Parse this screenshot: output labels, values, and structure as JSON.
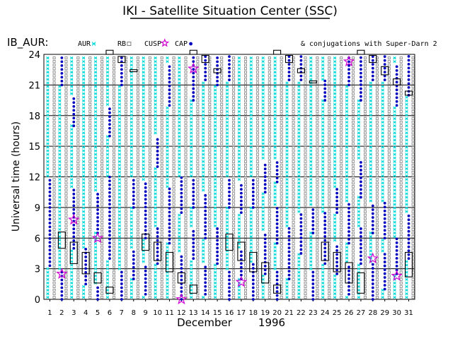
{
  "page_title": "IKI - Satellite Situation Center (SSC)",
  "panel_label": "IB_AUR:",
  "conjugations_note": "& conjugations with Super-Darn 2",
  "chart_data": {
    "type": "scatter",
    "title": "IKI - Satellite Situation Center (SSC)",
    "xlabel": "December",
    "xlabel_year": "1996",
    "ylabel": "Universal time (hours)",
    "xlim": [
      0.5,
      31.5
    ],
    "ylim": [
      0,
      24
    ],
    "x_ticks": [
      1,
      2,
      3,
      4,
      5,
      6,
      7,
      8,
      9,
      10,
      11,
      12,
      13,
      14,
      15,
      16,
      17,
      18,
      19,
      20,
      21,
      22,
      23,
      24,
      25,
      26,
      27,
      28,
      29,
      30,
      31
    ],
    "y_ticks": [
      0,
      3,
      6,
      9,
      12,
      15,
      18,
      21,
      24
    ],
    "grid": true,
    "legend_position": "top",
    "legend": [
      {
        "label": "AUR",
        "marker": "cross",
        "color": "#00d8d8"
      },
      {
        "label": "RB",
        "marker": "square",
        "color": "#808080"
      },
      {
        "label": "CUSP",
        "marker": "star",
        "color": "#d000d0"
      },
      {
        "label": "CAP",
        "marker": "dot",
        "color": "#0000c0"
      }
    ],
    "cap_intervals": [
      {
        "day": 1,
        "ranges": [
          [
            3.3,
            12.0
          ]
        ]
      },
      {
        "day": 2,
        "ranges": [
          [
            0,
            3.0
          ],
          [
            21.0,
            24.0
          ]
        ]
      },
      {
        "day": 3,
        "ranges": [
          [
            5.0,
            11.0
          ],
          [
            17.0,
            20.0
          ]
        ]
      },
      {
        "day": 4,
        "ranges": [
          [
            1.5,
            5.0
          ]
        ]
      },
      {
        "day": 5,
        "ranges": [
          [
            0,
            1.5
          ],
          [
            6.5,
            10.5
          ]
        ]
      },
      {
        "day": 6,
        "ranges": [
          [
            4.0,
            12.0
          ],
          [
            16.0,
            19.0
          ]
        ]
      },
      {
        "day": 7,
        "ranges": [
          [
            0,
            3.0
          ],
          [
            21.0,
            24.0
          ]
        ]
      },
      {
        "day": 8,
        "ranges": [
          [
            2.0,
            5.0
          ],
          [
            9.0,
            12.0
          ]
        ]
      },
      {
        "day": 9,
        "ranges": [
          [
            0.5,
            3.5
          ],
          [
            6.0,
            11.5
          ]
        ]
      },
      {
        "day": 10,
        "ranges": [
          [
            3.5,
            7.0
          ],
          [
            13.0,
            16.0
          ]
        ]
      },
      {
        "day": 11,
        "ranges": [
          [
            5.5,
            11.0
          ],
          [
            19.0,
            23.0
          ]
        ]
      },
      {
        "day": 12,
        "ranges": [
          [
            0,
            4.5
          ],
          [
            8.5,
            12.0
          ]
        ]
      },
      {
        "day": 13,
        "ranges": [
          [
            4.0,
            7.0
          ],
          [
            9.0,
            12.0
          ],
          [
            19.5,
            24.0
          ]
        ]
      },
      {
        "day": 14,
        "ranges": [
          [
            0.5,
            3.5
          ],
          [
            6.0,
            10.5
          ],
          [
            21.5,
            24.0
          ]
        ]
      },
      {
        "day": 15,
        "ranges": [
          [
            3.5,
            7.0
          ],
          [
            21.0,
            24.0
          ]
        ]
      },
      {
        "day": 16,
        "ranges": [
          [
            0,
            3.0
          ],
          [
            9.0,
            12.0
          ],
          [
            21.5,
            24.0
          ]
        ]
      },
      {
        "day": 17,
        "ranges": [
          [
            2.0,
            5.0
          ],
          [
            8.5,
            11.5
          ]
        ]
      },
      {
        "day": 18,
        "ranges": [
          [
            0,
            3.5
          ],
          [
            9.0,
            12.0
          ]
        ]
      },
      {
        "day": 19,
        "ranges": [
          [
            2.5,
            6.5
          ],
          [
            10.5,
            13.5
          ]
        ]
      },
      {
        "day": 20,
        "ranges": [
          [
            0,
            3.0
          ],
          [
            5.5,
            9.0
          ],
          [
            11.5,
            13.5
          ]
        ]
      },
      {
        "day": 21,
        "ranges": [
          [
            2.0,
            7.0
          ],
          [
            21.5,
            24.0
          ]
        ]
      },
      {
        "day": 22,
        "ranges": [
          [
            4.5,
            8.5
          ],
          [
            21.5,
            24.0
          ]
        ]
      },
      {
        "day": 23,
        "ranges": [
          [
            0,
            3.0
          ],
          [
            6.5,
            9.0
          ]
        ]
      },
      {
        "day": 24,
        "ranges": [
          [
            3.5,
            8.5
          ],
          [
            19.5,
            21.5
          ]
        ]
      },
      {
        "day": 25,
        "ranges": [
          [
            2.5,
            5.5
          ],
          [
            8.5,
            11.0
          ]
        ]
      },
      {
        "day": 26,
        "ranges": [
          [
            0.5,
            3.5
          ],
          [
            5.5,
            9.5
          ],
          [
            21.0,
            24.0
          ]
        ]
      },
      {
        "day": 27,
        "ranges": [
          [
            3.5,
            7.0
          ],
          [
            10.0,
            13.5
          ],
          [
            19.5,
            24.0
          ]
        ]
      },
      {
        "day": 28,
        "ranges": [
          [
            0,
            3.5
          ],
          [
            6.5,
            9.5
          ],
          [
            21.5,
            24.0
          ]
        ]
      },
      {
        "day": 29,
        "ranges": [
          [
            1.0,
            4.5
          ],
          [
            6.0,
            9.5
          ],
          [
            21.5,
            24.0
          ]
        ]
      },
      {
        "day": 30,
        "ranges": [
          [
            2.5,
            6.0
          ],
          [
            19.0,
            23.0
          ]
        ]
      },
      {
        "day": 31,
        "ranges": [
          [
            4.0,
            8.5
          ],
          [
            20.0,
            24.0
          ]
        ]
      }
    ],
    "cusp_events": [
      {
        "day": 2,
        "ut": 2.5
      },
      {
        "day": 3,
        "ut": 7.8
      },
      {
        "day": 5,
        "ut": 6.0
      },
      {
        "day": 12,
        "ut": 0.0
      },
      {
        "day": 13,
        "ut": 22.6
      },
      {
        "day": 17,
        "ut": 1.7
      },
      {
        "day": 26,
        "ut": 23.3
      },
      {
        "day": 28,
        "ut": 4.0
      },
      {
        "day": 30,
        "ut": 2.3
      }
    ],
    "conjugation_boxes": [
      {
        "day": 2,
        "ut_start": 5.0,
        "ut_end": 6.6
      },
      {
        "day": 3,
        "ut_start": 3.5,
        "ut_end": 5.6
      },
      {
        "day": 4,
        "ut_start": 2.5,
        "ut_end": 4.6
      },
      {
        "day": 5,
        "ut_start": 1.6,
        "ut_end": 2.6
      },
      {
        "day": 6,
        "ut_start": 0.6,
        "ut_end": 1.2
      },
      {
        "day": 6,
        "ut_start": 24.0,
        "ut_end": 24.4
      },
      {
        "day": 7,
        "ut_start": 23.2,
        "ut_end": 23.8
      },
      {
        "day": 8,
        "ut_start": 22.3,
        "ut_end": 22.5
      },
      {
        "day": 9,
        "ut_start": 4.8,
        "ut_end": 6.4
      },
      {
        "day": 10,
        "ut_start": 3.8,
        "ut_end": 5.6
      },
      {
        "day": 11,
        "ut_start": 2.7,
        "ut_end": 4.6
      },
      {
        "day": 12,
        "ut_start": 1.6,
        "ut_end": 2.6
      },
      {
        "day": 13,
        "ut_start": 0.6,
        "ut_end": 1.4
      },
      {
        "day": 13,
        "ut_start": 24.0,
        "ut_end": 24.4
      },
      {
        "day": 14,
        "ut_start": 23.2,
        "ut_end": 23.9
      },
      {
        "day": 15,
        "ut_start": 22.2,
        "ut_end": 22.6
      },
      {
        "day": 16,
        "ut_start": 4.8,
        "ut_end": 6.4
      },
      {
        "day": 17,
        "ut_start": 3.8,
        "ut_end": 5.6
      },
      {
        "day": 18,
        "ut_start": 2.7,
        "ut_end": 4.6
      },
      {
        "day": 19,
        "ut_start": 1.6,
        "ut_end": 3.6
      },
      {
        "day": 20,
        "ut_start": 0.6,
        "ut_end": 1.4
      },
      {
        "day": 20,
        "ut_start": 24.0,
        "ut_end": 24.4
      },
      {
        "day": 21,
        "ut_start": 23.2,
        "ut_end": 23.9
      },
      {
        "day": 22,
        "ut_start": 22.2,
        "ut_end": 22.6
      },
      {
        "day": 23,
        "ut_start": 21.2,
        "ut_end": 21.4
      },
      {
        "day": 24,
        "ut_start": 3.8,
        "ut_end": 5.6
      },
      {
        "day": 25,
        "ut_start": 2.7,
        "ut_end": 4.6
      },
      {
        "day": 26,
        "ut_start": 1.6,
        "ut_end": 3.6
      },
      {
        "day": 27,
        "ut_start": 0.6,
        "ut_end": 2.6
      },
      {
        "day": 27,
        "ut_start": 24.0,
        "ut_end": 24.4
      },
      {
        "day": 28,
        "ut_start": 23.2,
        "ut_end": 23.9
      },
      {
        "day": 29,
        "ut_start": 22.0,
        "ut_end": 22.8
      },
      {
        "day": 30,
        "ut_start": 21.0,
        "ut_end": 21.6
      },
      {
        "day": 31,
        "ut_start": 20.0,
        "ut_end": 20.4
      },
      {
        "day": 31,
        "ut_start": 2.2,
        "ut_end": 4.6
      }
    ]
  }
}
